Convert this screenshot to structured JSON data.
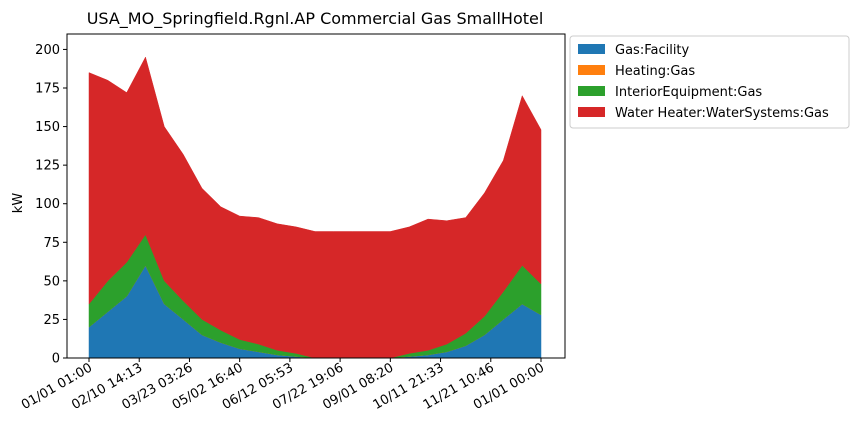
{
  "chart_data": {
    "type": "area",
    "title": "USA_MO_Springfield.Rgnl.AP Commercial Gas SmallHotel",
    "xlabel": "",
    "ylabel": "kW",
    "ylim": [
      0,
      210
    ],
    "yticks": [
      0,
      25,
      50,
      75,
      100,
      125,
      150,
      175,
      200
    ],
    "xtick_labels": [
      "01/01 01:00",
      "02/10 14:13",
      "03/23 03:26",
      "05/02 16:40",
      "06/12 05:53",
      "07/22 19:06",
      "09/01 08:20",
      "10/11 21:33",
      "11/21 10:46",
      "01/01 00:00"
    ],
    "grid": false,
    "legend_position": "outside-right",
    "stacked": true,
    "x": [
      "01/01",
      "01/15",
      "02/01",
      "02/15",
      "03/01",
      "03/15",
      "04/01",
      "04/15",
      "05/01",
      "05/15",
      "06/01",
      "06/15",
      "07/01",
      "07/15",
      "08/01",
      "08/15",
      "09/01",
      "09/15",
      "10/01",
      "10/15",
      "11/01",
      "11/15",
      "12/01",
      "12/15",
      "12/31"
    ],
    "series": [
      {
        "name": "Gas:Facility",
        "color": "#1f77b4",
        "values": [
          20,
          30,
          40,
          60,
          35,
          25,
          15,
          10,
          6,
          4,
          2,
          1,
          0,
          0,
          0,
          0,
          0,
          1,
          2,
          4,
          8,
          15,
          25,
          35,
          28
        ]
      },
      {
        "name": "Heating:Gas",
        "color": "#ff7f0e",
        "values": [
          0,
          0,
          0,
          0,
          0,
          0,
          0,
          0,
          0,
          0,
          0,
          0,
          0,
          0,
          0,
          0,
          0,
          0,
          0,
          0,
          0,
          0,
          0,
          0,
          0
        ]
      },
      {
        "name": "InteriorEquipment:Gas",
        "color": "#2ca02c",
        "values": [
          15,
          20,
          22,
          20,
          15,
          12,
          10,
          8,
          6,
          5,
          3,
          2,
          0,
          0,
          0,
          0,
          0,
          2,
          3,
          5,
          8,
          12,
          18,
          25,
          20
        ]
      },
      {
        "name": "Water Heater:WaterSystems:Gas",
        "color": "#d62728",
        "values": [
          150,
          130,
          110,
          115,
          100,
          95,
          85,
          80,
          80,
          82,
          82,
          82,
          82,
          82,
          82,
          82,
          82,
          82,
          85,
          80,
          75,
          80,
          85,
          110,
          100
        ]
      }
    ]
  }
}
